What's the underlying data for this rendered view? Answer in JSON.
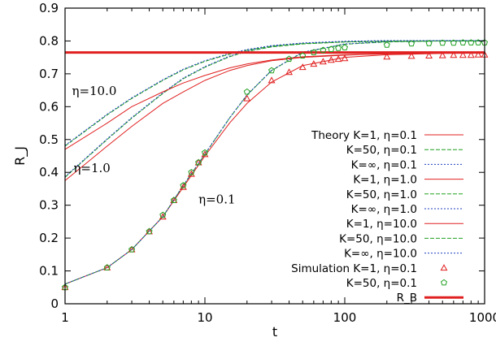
{
  "chart_data": {
    "type": "line",
    "title": "",
    "xlabel": "t",
    "ylabel": "R_J",
    "xscale": "log",
    "xlim": [
      1,
      1000
    ],
    "ylim": [
      0,
      0.9
    ],
    "xticks": [
      {
        "v": 1,
        "label": "1"
      },
      {
        "v": 10,
        "label": "10"
      },
      {
        "v": 100,
        "label": "100"
      },
      {
        "v": 1000,
        "label": "1000"
      }
    ],
    "yticks": [
      {
        "v": 0,
        "label": "0"
      },
      {
        "v": 0.1,
        "label": "0.1"
      },
      {
        "v": 0.2,
        "label": "0.2"
      },
      {
        "v": 0.3,
        "label": "0.3"
      },
      {
        "v": 0.4,
        "label": "0.4"
      },
      {
        "v": 0.5,
        "label": "0.5"
      },
      {
        "v": 0.6,
        "label": "0.6"
      },
      {
        "v": 0.7,
        "label": "0.7"
      },
      {
        "v": 0.8,
        "label": "0.8"
      },
      {
        "v": 0.9,
        "label": "0.9"
      }
    ],
    "legend_position": "lower-right",
    "series": [
      {
        "name": "Theory K=1, η=0.1",
        "kind": "line",
        "color": "#e02020",
        "dash": "solid",
        "x": [
          1,
          2,
          3,
          5,
          7,
          10,
          15,
          20,
          30,
          50,
          100,
          200,
          500,
          1000
        ],
        "y": [
          0.06,
          0.11,
          0.165,
          0.265,
          0.355,
          0.45,
          0.55,
          0.61,
          0.675,
          0.725,
          0.75,
          0.758,
          0.762,
          0.763
        ]
      },
      {
        "name": "K=50, η=0.1",
        "kind": "line",
        "color": "#20a020",
        "dash": "5,2",
        "x": [
          1,
          2,
          3,
          5,
          7,
          10,
          15,
          20,
          30,
          50,
          100,
          200,
          500,
          1000
        ],
        "y": [
          0.06,
          0.11,
          0.165,
          0.265,
          0.36,
          0.455,
          0.565,
          0.635,
          0.71,
          0.765,
          0.79,
          0.797,
          0.8,
          0.8
        ]
      },
      {
        "name": "K=∞, η=0.1",
        "kind": "line",
        "color": "#2040c0",
        "dash": "2,2",
        "x": [
          1,
          2,
          3,
          5,
          7,
          10,
          15,
          20,
          30,
          50,
          100,
          200,
          500,
          1000
        ],
        "y": [
          0.06,
          0.11,
          0.165,
          0.265,
          0.36,
          0.456,
          0.566,
          0.636,
          0.711,
          0.766,
          0.791,
          0.798,
          0.801,
          0.801
        ]
      },
      {
        "name": "K=1, η=1.0",
        "kind": "line",
        "color": "#e02020",
        "dash": "solid",
        "x": [
          1,
          2,
          3,
          5,
          7,
          10,
          15,
          20,
          30,
          50,
          100,
          200,
          500,
          1000
        ],
        "y": [
          0.375,
          0.48,
          0.54,
          0.61,
          0.645,
          0.68,
          0.71,
          0.725,
          0.74,
          0.75,
          0.757,
          0.761,
          0.763,
          0.763
        ]
      },
      {
        "name": "K=50, η=1.0",
        "kind": "line",
        "color": "#20a020",
        "dash": "5,2",
        "x": [
          1,
          2,
          3,
          5,
          7,
          10,
          15,
          20,
          30,
          50,
          100,
          200,
          500,
          1000
        ],
        "y": [
          0.385,
          0.5,
          0.565,
          0.64,
          0.685,
          0.72,
          0.752,
          0.768,
          0.782,
          0.791,
          0.797,
          0.799,
          0.8,
          0.8
        ]
      },
      {
        "name": "K=∞, η=1.0",
        "kind": "line",
        "color": "#2040c0",
        "dash": "2,2",
        "x": [
          1,
          2,
          3,
          5,
          7,
          10,
          15,
          20,
          30,
          50,
          100,
          200,
          500,
          1000
        ],
        "y": [
          0.387,
          0.502,
          0.567,
          0.642,
          0.687,
          0.722,
          0.754,
          0.77,
          0.784,
          0.793,
          0.799,
          0.801,
          0.801,
          0.801
        ]
      },
      {
        "name": "K=1, η=10.0",
        "kind": "line",
        "color": "#e02020",
        "dash": "solid",
        "x": [
          1,
          2,
          3,
          5,
          7,
          10,
          15,
          20,
          30,
          50,
          100,
          200,
          500,
          1000
        ],
        "y": [
          0.47,
          0.55,
          0.6,
          0.645,
          0.672,
          0.695,
          0.718,
          0.73,
          0.742,
          0.752,
          0.758,
          0.761,
          0.763,
          0.763
        ]
      },
      {
        "name": "K=50, η=10.0",
        "kind": "line",
        "color": "#20a020",
        "dash": "5,2",
        "x": [
          1,
          2,
          3,
          5,
          7,
          10,
          15,
          20,
          30,
          50,
          100,
          200,
          500,
          1000
        ],
        "y": [
          0.48,
          0.575,
          0.625,
          0.68,
          0.712,
          0.738,
          0.76,
          0.772,
          0.784,
          0.792,
          0.797,
          0.799,
          0.8,
          0.8
        ]
      },
      {
        "name": "K=∞, η=10.0",
        "kind": "line",
        "color": "#2040c0",
        "dash": "2,2",
        "x": [
          1,
          2,
          3,
          5,
          7,
          10,
          15,
          20,
          30,
          50,
          100,
          200,
          500,
          1000
        ],
        "y": [
          0.482,
          0.577,
          0.627,
          0.682,
          0.714,
          0.74,
          0.762,
          0.774,
          0.786,
          0.794,
          0.799,
          0.801,
          0.801,
          0.801
        ]
      },
      {
        "name": "Simulation K=1, η=0.1",
        "kind": "marker",
        "marker": "triangle",
        "color": "#e02020",
        "x": [
          1,
          2,
          3,
          4,
          5,
          6,
          7,
          8,
          9,
          10,
          20,
          30,
          40,
          50,
          60,
          70,
          80,
          90,
          100,
          200,
          300,
          400,
          500,
          600,
          700,
          800,
          900,
          1000
        ],
        "y": [
          0.05,
          0.11,
          0.165,
          0.22,
          0.265,
          0.315,
          0.355,
          0.395,
          0.43,
          0.455,
          0.625,
          0.68,
          0.705,
          0.72,
          0.73,
          0.737,
          0.742,
          0.745,
          0.747,
          0.752,
          0.754,
          0.755,
          0.756,
          0.757,
          0.757,
          0.757,
          0.758,
          0.758
        ]
      },
      {
        "name": "K=50, η=0.1",
        "kind": "marker",
        "marker": "pentagon",
        "color": "#20a020",
        "x": [
          1,
          2,
          3,
          4,
          5,
          6,
          7,
          8,
          9,
          10,
          20,
          30,
          40,
          50,
          60,
          70,
          80,
          90,
          100,
          200,
          300,
          400,
          500,
          600,
          700,
          800,
          900,
          1000
        ],
        "y": [
          0.05,
          0.11,
          0.165,
          0.22,
          0.27,
          0.315,
          0.36,
          0.4,
          0.43,
          0.46,
          0.645,
          0.71,
          0.745,
          0.755,
          0.765,
          0.772,
          0.775,
          0.778,
          0.78,
          0.788,
          0.792,
          0.793,
          0.794,
          0.794,
          0.795,
          0.795,
          0.795,
          0.795
        ]
      },
      {
        "name": "R_B",
        "kind": "hline",
        "color": "#e02020",
        "dash": "solid",
        "width": 3,
        "y": 0.765
      }
    ],
    "annotations": [
      {
        "text": "η=10.0",
        "x": 1.12,
        "y": 0.635
      },
      {
        "text": "η=1.0",
        "x": 1.15,
        "y": 0.4
      },
      {
        "text": "η=0.1",
        "x": 9.0,
        "y": 0.305
      }
    ]
  }
}
